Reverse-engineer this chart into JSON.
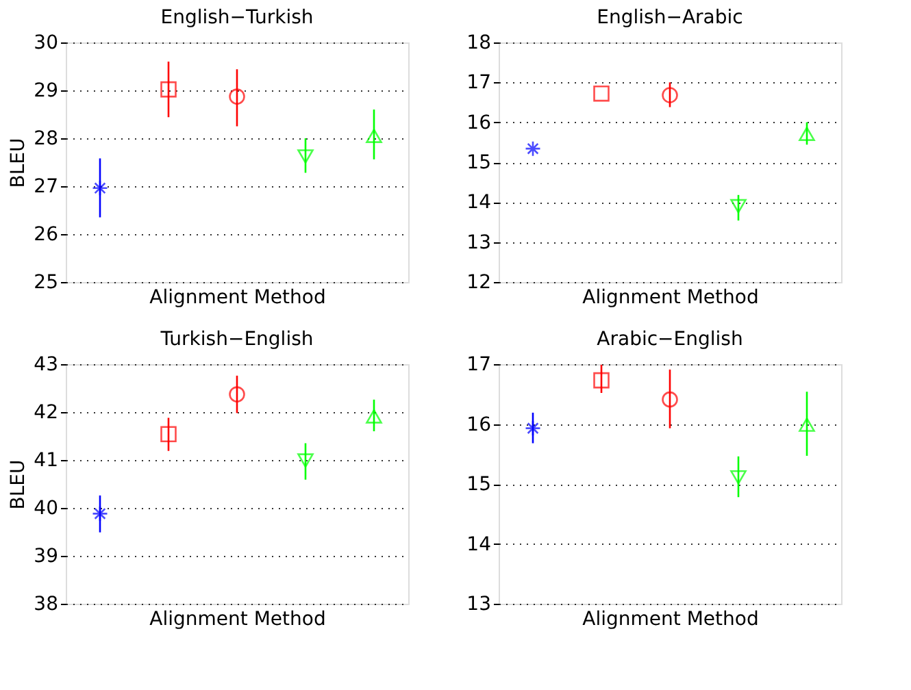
{
  "chart_data": [
    {
      "type": "scatter",
      "title": "English−Turkish",
      "xlabel": "Alignment Method",
      "ylabel": "BLEU",
      "categories": [
        null,
        null,
        null,
        null,
        null
      ],
      "ylim": [
        25,
        30
      ],
      "yticks": [
        25,
        26,
        27,
        28,
        29,
        30
      ],
      "grid": "y",
      "tick_labels": "y",
      "series": [
        {
          "color": "#0000ff",
          "marker": "cross",
          "values": [
            26.96,
            null,
            null,
            null,
            null
          ],
          "errors": [
            [
              26.35,
              27.58
            ],
            null,
            null,
            null,
            null
          ]
        },
        {
          "color": "#ff0000",
          "marker": "square",
          "values": [
            null,
            29.02,
            null,
            null,
            null
          ],
          "errors": [
            null,
            [
              28.44,
              29.6
            ],
            null,
            null,
            null
          ]
        },
        {
          "color": "#ff0000",
          "marker": "circle",
          "values": [
            null,
            null,
            28.87,
            null,
            null
          ],
          "errors": [
            null,
            null,
            [
              28.25,
              29.44
            ],
            null,
            null
          ]
        },
        {
          "color": "#00ff00",
          "marker": "triangle-down",
          "values": [
            null,
            null,
            null,
            27.62,
            null
          ],
          "errors": [
            null,
            null,
            null,
            [
              27.28,
              28.0
            ],
            null
          ]
        },
        {
          "color": "#00ff00",
          "marker": "triangle",
          "values": [
            null,
            null,
            null,
            null,
            28.05
          ],
          "errors": [
            null,
            null,
            null,
            null,
            [
              27.56,
              28.6
            ]
          ]
        }
      ]
    },
    {
      "type": "scatter",
      "title": "English−Arabic",
      "xlabel": "Alignment Method",
      "categories": [
        null,
        null,
        null,
        null,
        null
      ],
      "ylim": [
        12,
        18
      ],
      "yticks": [
        12,
        13,
        14,
        15,
        16,
        17,
        18
      ],
      "grid": "y",
      "tick_labels": "y",
      "series": [
        {
          "color": "#0000ff",
          "marker": "cross",
          "values": [
            15.34,
            null,
            null,
            null,
            null
          ]
        },
        {
          "color": "#ff0000",
          "marker": "square",
          "values": [
            null,
            16.72,
            null,
            null,
            null
          ]
        },
        {
          "color": "#ff0000",
          "marker": "circle",
          "values": [
            null,
            null,
            16.68,
            null,
            null
          ],
          "errors": [
            null,
            null,
            [
              16.38,
              17.0
            ],
            null,
            null
          ]
        },
        {
          "color": "#00ff00",
          "marker": "triangle-down",
          "values": [
            null,
            null,
            null,
            13.9,
            null
          ],
          "errors": [
            null,
            null,
            null,
            [
              13.54,
              14.18
            ],
            null
          ]
        },
        {
          "color": "#00ff00",
          "marker": "triangle",
          "values": [
            null,
            null,
            null,
            null,
            15.71
          ],
          "errors": [
            null,
            null,
            null,
            null,
            [
              15.44,
              16.0
            ]
          ]
        }
      ]
    },
    {
      "type": "scatter",
      "title": "Turkish−English",
      "xlabel": "Alignment Method",
      "ylabel": "BLEU",
      "categories": [
        null,
        null,
        null,
        null,
        null
      ],
      "ylim": [
        38,
        43
      ],
      "yticks": [
        38,
        39,
        40,
        41,
        42,
        43
      ],
      "grid": "y",
      "tick_labels": "y",
      "series": [
        {
          "color": "#0000ff",
          "marker": "cross",
          "values": [
            39.88,
            null,
            null,
            null,
            null
          ],
          "errors": [
            [
              39.49,
              40.26
            ],
            null,
            null,
            null,
            null
          ]
        },
        {
          "color": "#ff0000",
          "marker": "square",
          "values": [
            null,
            41.54,
            null,
            null,
            null
          ],
          "errors": [
            null,
            [
              41.19,
              41.88
            ],
            null,
            null,
            null
          ]
        },
        {
          "color": "#ff0000",
          "marker": "circle",
          "values": [
            null,
            null,
            42.37,
            null,
            null
          ],
          "errors": [
            null,
            null,
            [
              41.98,
              42.76
            ],
            null,
            null
          ]
        },
        {
          "color": "#00ff00",
          "marker": "triangle-down",
          "values": [
            null,
            null,
            null,
            40.99,
            null
          ],
          "errors": [
            null,
            null,
            null,
            [
              40.59,
              41.35
            ],
            null
          ]
        },
        {
          "color": "#00ff00",
          "marker": "triangle",
          "values": [
            null,
            null,
            null,
            null,
            41.91
          ],
          "errors": [
            null,
            null,
            null,
            null,
            [
              41.6,
              42.26
            ]
          ]
        }
      ]
    },
    {
      "type": "scatter",
      "title": "Arabic−English",
      "xlabel": "Alignment Method",
      "categories": [
        null,
        null,
        null,
        null,
        null
      ],
      "ylim": [
        13,
        17
      ],
      "yticks": [
        13,
        14,
        15,
        16,
        17
      ],
      "grid": "y",
      "tick_labels": "y",
      "series": [
        {
          "color": "#0000ff",
          "marker": "cross",
          "values": [
            15.93,
            null,
            null,
            null,
            null
          ],
          "errors": [
            [
              15.68,
              16.19
            ],
            null,
            null,
            null,
            null
          ]
        },
        {
          "color": "#ff0000",
          "marker": "square",
          "values": [
            null,
            16.73,
            null,
            null,
            null
          ],
          "errors": [
            null,
            [
              16.52,
              16.99
            ],
            null,
            null,
            null
          ]
        },
        {
          "color": "#ff0000",
          "marker": "circle",
          "values": [
            null,
            null,
            16.41,
            null,
            null
          ],
          "errors": [
            null,
            null,
            [
              15.93,
              16.91
            ],
            null,
            null
          ]
        },
        {
          "color": "#00ff00",
          "marker": "triangle-down",
          "values": [
            null,
            null,
            null,
            15.11,
            null
          ],
          "errors": [
            null,
            null,
            null,
            [
              14.78,
              15.46
            ],
            null
          ]
        },
        {
          "color": "#00ff00",
          "marker": "triangle",
          "values": [
            null,
            null,
            null,
            null,
            15.99
          ],
          "errors": [
            null,
            null,
            null,
            null,
            [
              15.47,
              16.54
            ]
          ]
        }
      ]
    }
  ]
}
